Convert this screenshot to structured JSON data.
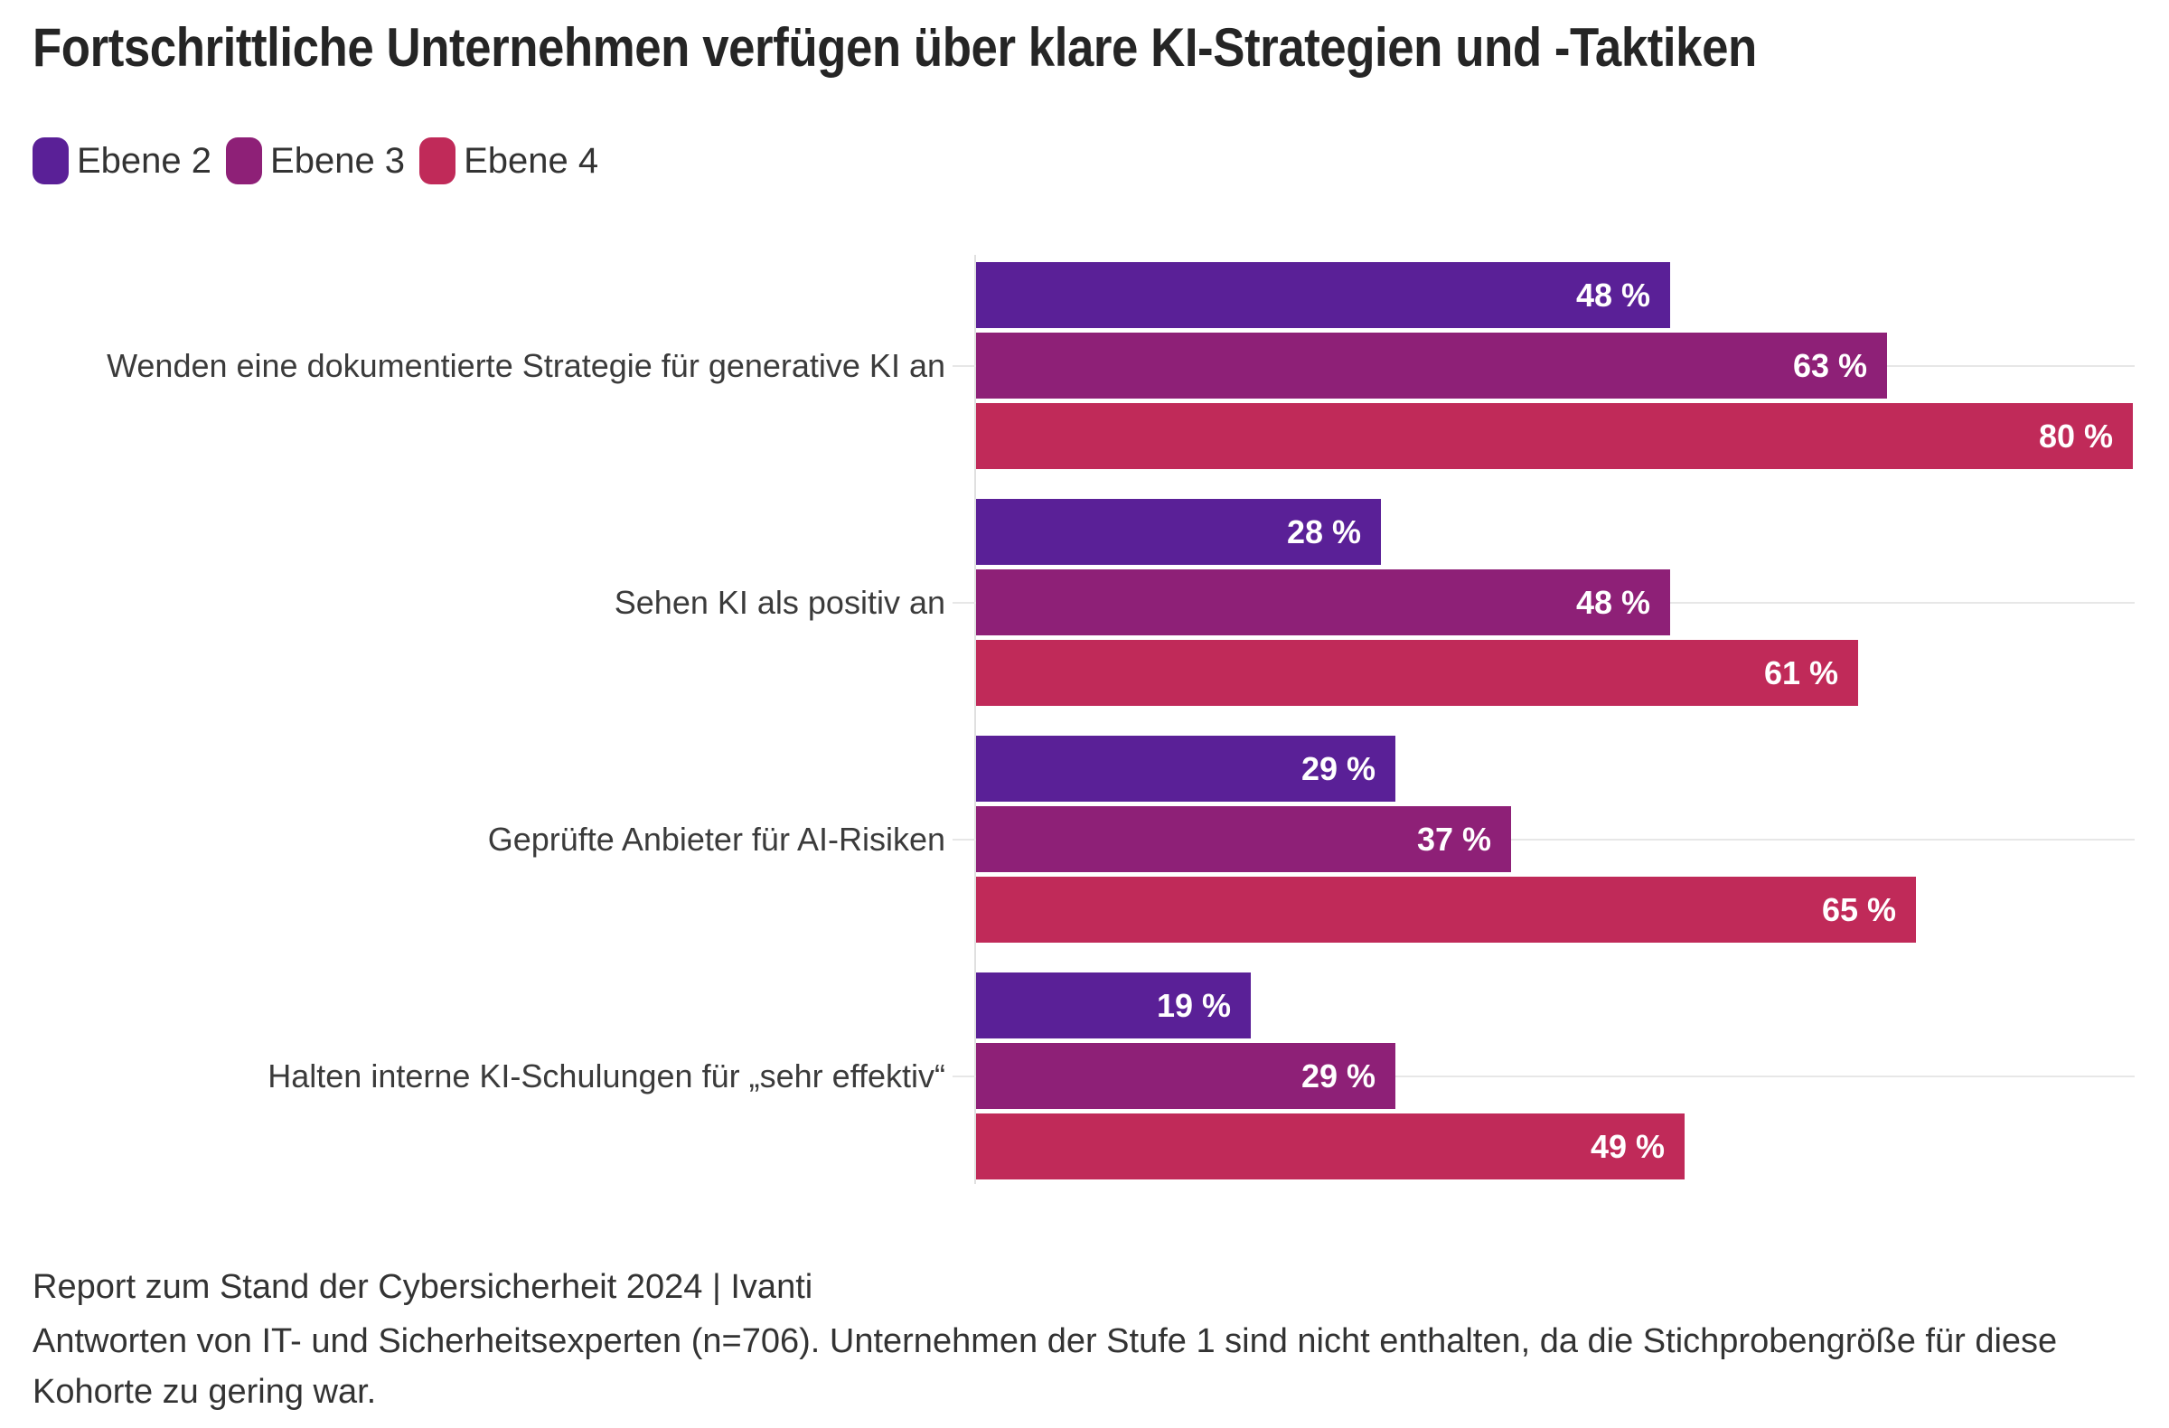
{
  "title": "Fortschrittliche Unternehmen verfügen über klare KI-Strategien und -Taktiken",
  "chart_data": {
    "type": "bar",
    "orientation": "horizontal",
    "title": "Fortschrittliche Unternehmen verfügen über klare KI-Strategien und -Taktiken",
    "categories": [
      "Wenden eine dokumentierte Strategie für generative KI an",
      "Sehen KI als positiv an",
      "Geprüfte Anbieter für AI-Risiken",
      "Halten interne KI-Schulungen für „sehr effektiv“"
    ],
    "series": [
      {
        "name": "Ebene 2",
        "color": "#5A2097",
        "values": [
          48,
          28,
          29,
          19
        ]
      },
      {
        "name": "Ebene 3",
        "color": "#8E2077",
        "values": [
          63,
          48,
          37,
          29
        ]
      },
      {
        "name": "Ebene 4",
        "color": "#C02A59",
        "values": [
          80,
          61,
          65,
          49
        ]
      }
    ],
    "value_suffix": " %",
    "xlim": [
      0,
      80
    ],
    "legend_position": "top",
    "grid": "horizontal gridline per category, light gray, behind bars"
  },
  "footer": {
    "source": "Report zum Stand der Cybersicherheit 2024 | Ivanti",
    "note": "Antworten von IT- und Sicherheitsexperten (n=706). Unternehmen der Stufe 1 sind nicht enthalten, da die Stichprobengröße für diese Kohorte zu gering war."
  }
}
